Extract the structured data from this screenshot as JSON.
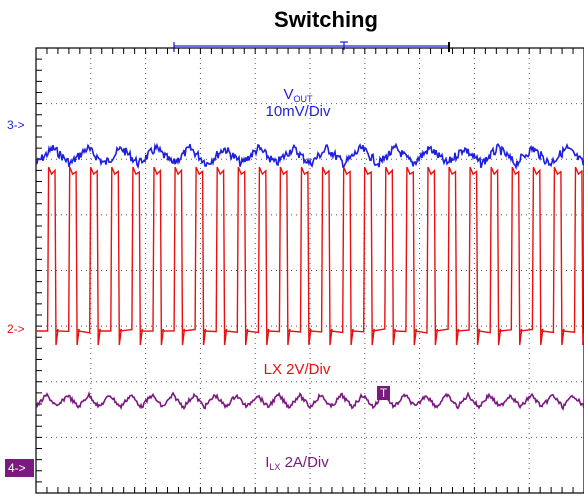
{
  "chart_data": {
    "type": "line",
    "title": "Switching",
    "grid": true,
    "divisions": {
      "x": 10,
      "y": 8
    },
    "colors": {
      "vout": "#1f1fe0",
      "lx": "#e81010",
      "ilx": "#7a1a80",
      "grid": "#555555"
    },
    "series": [
      {
        "key": "vout",
        "label_main": "V",
        "label_sub": "OUT",
        "label_scale": "10mV/Div",
        "marker": "3->",
        "ripple_cycles": 16,
        "ripple_div": 0.28
      },
      {
        "key": "lx",
        "label_main": "LX 2V/Div",
        "marker": "2->",
        "pulse_count": 26,
        "high_div": 3.0,
        "duty": 0.4
      },
      {
        "key": "ilx",
        "label_main": "I",
        "label_sub": "LX",
        "label_scale": "2A/Div",
        "marker": "4->",
        "ripple_cycles": 26,
        "ripple_div": 0.22
      }
    ],
    "trigger_marker": "T"
  }
}
